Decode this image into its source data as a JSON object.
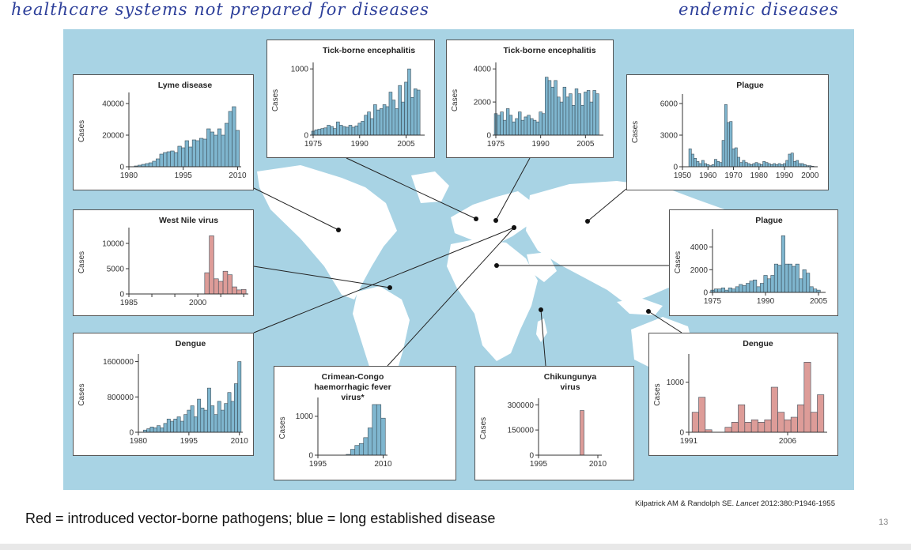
{
  "annotations": {
    "left": "healthcare systems not prepared for diseases",
    "right": "endemic diseases"
  },
  "caption": "Red = introduced vector-borne pathogens; blue = long established disease",
  "citation": {
    "authors": "Kilpatrick AM & Randolph SE.",
    "journal": "Lancet",
    "ref": "2012:380:P1946-1955"
  },
  "page_number": "13",
  "colors": {
    "established": "#7fb6cf",
    "introduced": "#dd9c98",
    "ocean": "#a8d3e4",
    "land": "#ffffff"
  },
  "chart_data": [
    {
      "id": "lyme",
      "type": "bar",
      "title": "Lyme disease",
      "ylabel": "Cases",
      "color": "established",
      "xlim": [
        1980,
        2011
      ],
      "ylim": [
        0,
        45000
      ],
      "xticks": [
        1980,
        1995,
        2010
      ],
      "xtick_labels": [
        "1980",
        "1995",
        "2010"
      ],
      "yticks": [
        0,
        20000,
        40000
      ],
      "ytick_labels": [
        "0",
        "20000",
        "40000"
      ],
      "x": [
        1982,
        1983,
        1984,
        1985,
        1986,
        1987,
        1988,
        1989,
        1990,
        1991,
        1992,
        1993,
        1994,
        1995,
        1996,
        1997,
        1998,
        1999,
        2000,
        2001,
        2002,
        2003,
        2004,
        2005,
        2006,
        2007,
        2008,
        2009,
        2010
      ],
      "values": [
        500,
        1000,
        1500,
        2000,
        2500,
        3500,
        5000,
        8000,
        9000,
        9500,
        10000,
        9000,
        13000,
        12000,
        16500,
        12500,
        17000,
        16500,
        18000,
        17500,
        24000,
        22000,
        20000,
        24000,
        20000,
        27500,
        35000,
        38000,
        23000
      ]
    },
    {
      "id": "tbe1",
      "type": "bar",
      "title": "Tick-borne encephalitis",
      "ylabel": "Cases",
      "color": "established",
      "xlim": [
        1975,
        2011
      ],
      "ylim": [
        0,
        1050
      ],
      "xticks": [
        1975,
        1990,
        2005
      ],
      "xtick_labels": [
        "1975",
        "1990",
        "2005"
      ],
      "yticks": [
        0,
        1000
      ],
      "ytick_labels": [
        "0",
        "1000"
      ],
      "x": [
        1975,
        1976,
        1977,
        1978,
        1979,
        1980,
        1981,
        1982,
        1983,
        1984,
        1985,
        1986,
        1987,
        1988,
        1989,
        1990,
        1991,
        1992,
        1993,
        1994,
        1995,
        1996,
        1997,
        1998,
        1999,
        2000,
        2001,
        2002,
        2003,
        2004,
        2005,
        2006,
        2007,
        2008,
        2009
      ],
      "values": [
        60,
        80,
        90,
        100,
        110,
        150,
        130,
        100,
        200,
        150,
        130,
        120,
        150,
        120,
        140,
        180,
        210,
        300,
        350,
        250,
        460,
        380,
        400,
        460,
        430,
        650,
        530,
        400,
        750,
        500,
        800,
        1000,
        570,
        700,
        680
      ]
    },
    {
      "id": "tbe2",
      "type": "bar",
      "title": "Tick-borne encephalitis",
      "ylabel": "Cases",
      "color": "established",
      "xlim": [
        1975,
        2011
      ],
      "ylim": [
        0,
        4200
      ],
      "xticks": [
        1975,
        1990,
        2005
      ],
      "xtick_labels": [
        "1975",
        "1990",
        "2005"
      ],
      "yticks": [
        0,
        2000,
        4000
      ],
      "ytick_labels": [
        "0",
        "2000",
        "4000"
      ],
      "x": [
        1975,
        1976,
        1977,
        1978,
        1979,
        1980,
        1981,
        1982,
        1983,
        1984,
        1985,
        1986,
        1987,
        1988,
        1989,
        1990,
        1991,
        1992,
        1993,
        1994,
        1995,
        1996,
        1997,
        1998,
        1999,
        2000,
        2001,
        2002,
        2003,
        2004,
        2005,
        2006,
        2007,
        2008,
        2009
      ],
      "values": [
        1300,
        1200,
        1400,
        900,
        1600,
        1200,
        800,
        1000,
        1400,
        900,
        1100,
        1200,
        1000,
        900,
        800,
        1400,
        1300,
        3500,
        3300,
        2900,
        3300,
        2300,
        2000,
        2900,
        2300,
        2500,
        1800,
        2800,
        2500,
        1800,
        2600,
        2700,
        2000,
        2700,
        2500
      ]
    },
    {
      "id": "plague1",
      "type": "bar",
      "title": "Plague",
      "ylabel": "Cases",
      "color": "established",
      "xlim": [
        1950,
        2003
      ],
      "ylim": [
        0,
        6600
      ],
      "xticks": [
        1950,
        1960,
        1970,
        1980,
        1990,
        2000
      ],
      "xtick_labels": [
        "1950",
        "1960",
        "1970",
        "1980",
        "1990",
        "2000"
      ],
      "yticks": [
        0,
        3000,
        6000
      ],
      "ytick_labels": [
        "0",
        "3000",
        "6000"
      ],
      "x": [
        1953,
        1954,
        1955,
        1956,
        1957,
        1958,
        1959,
        1960,
        1961,
        1962,
        1963,
        1964,
        1965,
        1966,
        1967,
        1968,
        1969,
        1970,
        1971,
        1972,
        1973,
        1974,
        1975,
        1976,
        1977,
        1978,
        1979,
        1980,
        1981,
        1982,
        1983,
        1984,
        1985,
        1986,
        1987,
        1988,
        1989,
        1990,
        1991,
        1992,
        1993,
        1994,
        1995,
        1996,
        1997,
        1998,
        1999,
        2000,
        2001
      ],
      "values": [
        1700,
        1200,
        800,
        500,
        300,
        600,
        300,
        200,
        100,
        200,
        700,
        500,
        400,
        2500,
        5900,
        4200,
        4300,
        1700,
        1800,
        900,
        400,
        600,
        400,
        300,
        200,
        300,
        400,
        300,
        200,
        500,
        400,
        300,
        200,
        300,
        200,
        300,
        200,
        300,
        600,
        1200,
        1300,
        500,
        600,
        300,
        300,
        200,
        100,
        100,
        50
      ]
    },
    {
      "id": "westnile",
      "type": "bar",
      "title": "West Nile virus",
      "ylabel": "Cases",
      "color": "introduced",
      "xlim": [
        1985,
        2011
      ],
      "ylim": [
        0,
        12500
      ],
      "xticks": [
        1985,
        1990,
        1995,
        2000,
        2005,
        2010
      ],
      "xtick_labels": [
        "1985",
        "",
        "",
        "2000",
        "",
        ""
      ],
      "yticks": [
        0,
        5000,
        10000
      ],
      "ytick_labels": [
        "0",
        "5000",
        "10000"
      ],
      "x": [
        2002,
        2003,
        2004,
        2005,
        2006,
        2007,
        2008,
        2009,
        2010
      ],
      "values": [
        4200,
        11500,
        3000,
        2500,
        4500,
        3800,
        1400,
        800,
        900
      ]
    },
    {
      "id": "plague2",
      "type": "bar",
      "title": "Plague",
      "ylabel": "Cases",
      "color": "established",
      "xlim": [
        1975,
        2007
      ],
      "ylim": [
        0,
        5300
      ],
      "xticks": [
        1975,
        1990,
        2005
      ],
      "xtick_labels": [
        "1975",
        "1990",
        "2005"
      ],
      "yticks": [
        0,
        2000,
        4000
      ],
      "ytick_labels": [
        "0",
        "2000",
        "4000"
      ],
      "x": [
        1975,
        1976,
        1977,
        1978,
        1979,
        1980,
        1981,
        1982,
        1983,
        1984,
        1985,
        1986,
        1987,
        1988,
        1989,
        1990,
        1991,
        1992,
        1993,
        1994,
        1995,
        1996,
        1997,
        1998,
        1999,
        2000,
        2001,
        2002,
        2003,
        2004,
        2005
      ],
      "values": [
        200,
        300,
        300,
        400,
        200,
        400,
        300,
        500,
        700,
        600,
        800,
        1000,
        1100,
        500,
        800,
        1500,
        1200,
        1500,
        2500,
        2400,
        5000,
        2500,
        2500,
        2300,
        2500,
        1200,
        2000,
        1700,
        500,
        300,
        200
      ]
    },
    {
      "id": "dengue1",
      "type": "bar",
      "title": "Dengue",
      "ylabel": "Cases",
      "color": "established",
      "xlim": [
        1980,
        2011
      ],
      "ylim": [
        0,
        1700000
      ],
      "xticks": [
        1980,
        1995,
        2010
      ],
      "xtick_labels": [
        "1980",
        "1995",
        "2010"
      ],
      "yticks": [
        0,
        800000,
        1600000
      ],
      "ytick_labels": [
        "0",
        "800000",
        "1600000"
      ],
      "x": [
        1982,
        1983,
        1984,
        1985,
        1986,
        1987,
        1988,
        1989,
        1990,
        1991,
        1992,
        1993,
        1994,
        1995,
        1996,
        1997,
        1998,
        1999,
        2000,
        2001,
        2002,
        2003,
        2004,
        2005,
        2006,
        2007,
        2008,
        2009,
        2010
      ],
      "values": [
        50000,
        80000,
        120000,
        100000,
        150000,
        100000,
        200000,
        300000,
        250000,
        300000,
        350000,
        250000,
        400000,
        500000,
        600000,
        350000,
        750000,
        550000,
        500000,
        1000000,
        600000,
        400000,
        700000,
        500000,
        650000,
        900000,
        700000,
        1100000,
        1600000
      ]
    },
    {
      "id": "cchf",
      "type": "bar",
      "title": "Crimean-Congo haemorrhagic fever virus*",
      "title_lines": [
        "Crimean-Congo",
        "haemorrhagic fever virus*"
      ],
      "ylabel": "Cases",
      "color": "established",
      "xlim": [
        1995,
        2011
      ],
      "ylim": [
        0,
        1400
      ],
      "xticks": [
        1995,
        2010
      ],
      "xtick_labels": [
        "1995",
        "2010"
      ],
      "yticks": [
        0,
        1000
      ],
      "ytick_labels": [
        "0",
        "1000"
      ],
      "x": [
        2002,
        2003,
        2004,
        2005,
        2006,
        2007,
        2008,
        2009,
        2010
      ],
      "values": [
        20,
        150,
        250,
        300,
        450,
        700,
        1300,
        1300,
        950
      ]
    },
    {
      "id": "chikungunya",
      "type": "bar",
      "title": "Chikungunya virus",
      "title_lines": [
        "Chikungunya",
        "virus"
      ],
      "ylabel": "Cases",
      "color": "introduced",
      "xlim": [
        1995,
        2011
      ],
      "ylim": [
        0,
        320000
      ],
      "xticks": [
        1995,
        2010
      ],
      "xtick_labels": [
        "1995",
        "2010"
      ],
      "yticks": [
        0,
        150000,
        300000
      ],
      "ytick_labels": [
        "0",
        "150000",
        "300000"
      ],
      "x": [
        2006
      ],
      "values": [
        266000
      ]
    },
    {
      "id": "dengue2",
      "type": "bar",
      "title": "Dengue",
      "ylabel": "Cases",
      "color": "introduced",
      "xlim": [
        1991,
        2012
      ],
      "ylim": [
        0,
        1500
      ],
      "xticks": [
        1991,
        2006
      ],
      "xtick_labels": [
        "1991",
        "2006"
      ],
      "yticks": [
        0,
        1000
      ],
      "ytick_labels": [
        "0",
        "1000"
      ],
      "x": [
        1992,
        1993,
        1994,
        1995,
        1996,
        1997,
        1998,
        1999,
        2000,
        2001,
        2002,
        2003,
        2004,
        2005,
        2006,
        2007,
        2008,
        2009,
        2010,
        2011
      ],
      "values": [
        400,
        700,
        50,
        0,
        0,
        100,
        200,
        550,
        200,
        250,
        200,
        250,
        900,
        400,
        250,
        300,
        550,
        1400,
        400,
        750
      ]
    }
  ]
}
